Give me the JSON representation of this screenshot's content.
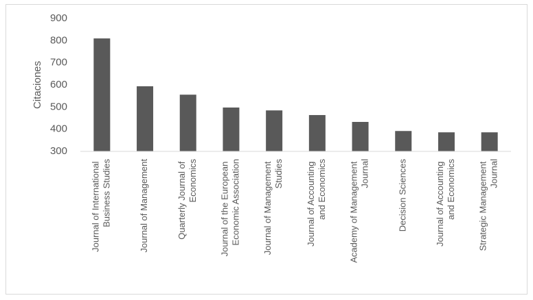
{
  "chart_data": {
    "type": "bar",
    "y_label": "Citaciones",
    "categories": [
      "Journal of International Business Studies",
      "Journal of Management",
      "Quarterly Journal of Economics",
      "Journal of the European Economic Association",
      "Journal of Management Studies",
      "Journal of Accounting and Economics",
      "Academy of Management Journal",
      "Decision Sciences",
      "Journal of Accounting and Economics",
      "Strategic Management Journal"
    ],
    "values": [
      810,
      594,
      556,
      498,
      485,
      464,
      433,
      392,
      386,
      386
    ],
    "color": "#595959",
    "ylim": [
      300,
      900
    ],
    "yticks": [
      300,
      400,
      500,
      600,
      700,
      800,
      900
    ],
    "grid": false
  }
}
